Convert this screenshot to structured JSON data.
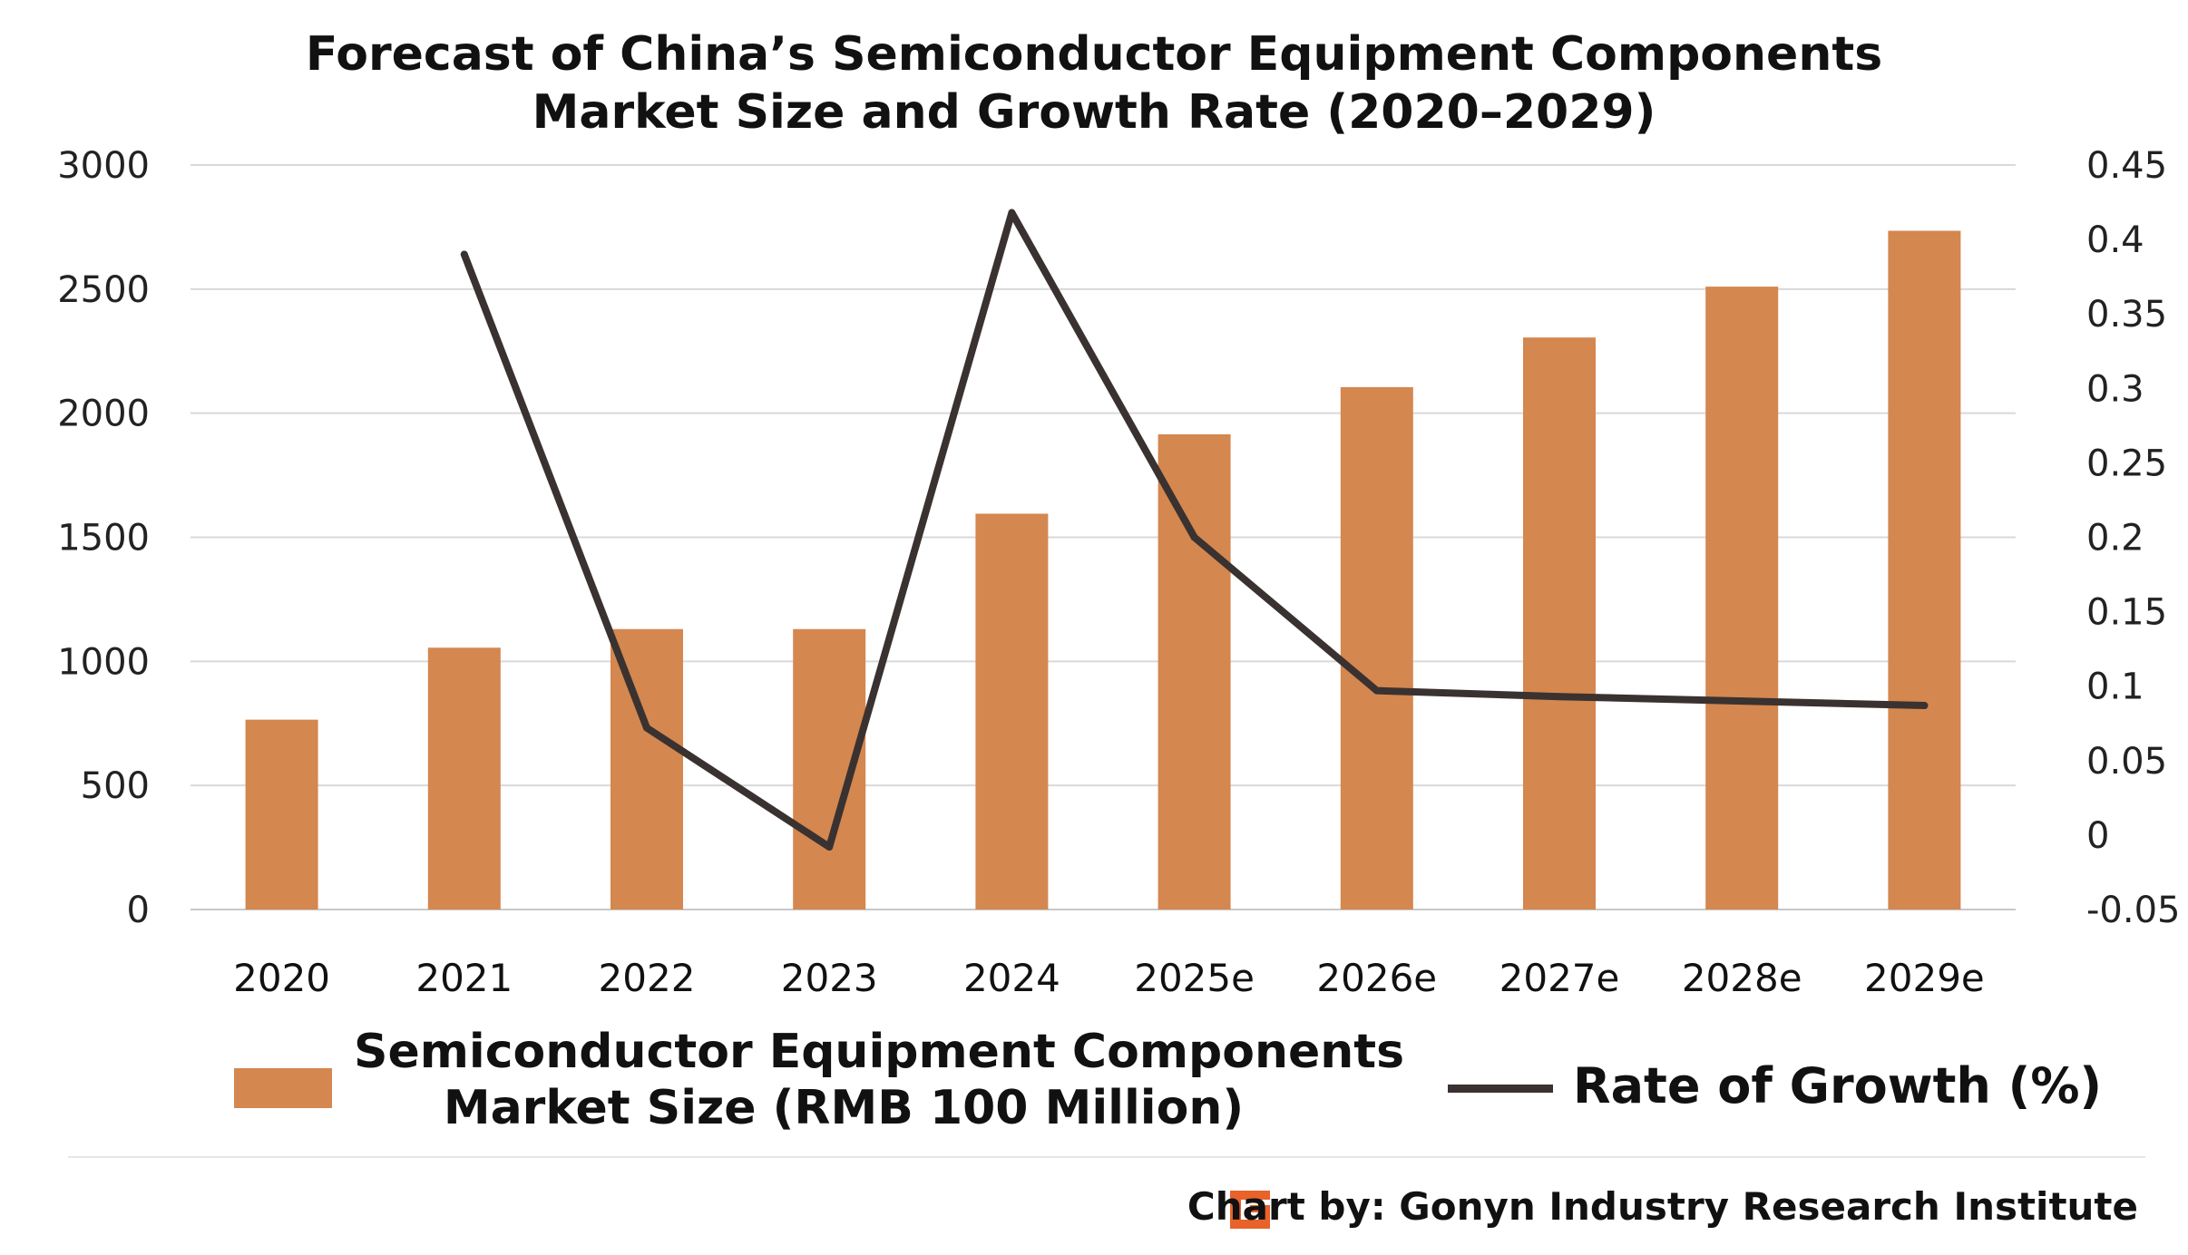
{
  "chart_data": {
    "type": "bar+line",
    "title": [
      "Forecast of China’s Semiconductor Equipment Components",
      "Market Size and Growth Rate (2020–2029)"
    ],
    "categories": [
      "2020",
      "2021",
      "2022",
      "2023",
      "2024",
      "2025e",
      "2026e",
      "2027e",
      "2028e",
      "2029e"
    ],
    "series": [
      {
        "name": "Semiconductor Equipment Components Market Size (RMB 100 Million)",
        "legend_lines": [
          "Semiconductor Equipment Components",
          "Market Size (RMB 100 Million)"
        ],
        "type": "bar",
        "axis": "left",
        "color": "#D4874F",
        "values": [
          765,
          1055,
          1130,
          1130,
          1595,
          1915,
          2105,
          2305,
          2510,
          2735
        ]
      },
      {
        "name": "Rate of Growth (%)",
        "type": "line",
        "axis": "right",
        "color": "#3A3230",
        "values": [
          null,
          0.39,
          0.072,
          -0.008,
          0.418,
          0.2,
          0.097,
          0.093,
          0.09,
          0.087
        ]
      }
    ],
    "y_left": {
      "min": 0,
      "max": 3000,
      "ticks": [
        "0",
        "500",
        "1000",
        "1500",
        "2000",
        "2500",
        "3000"
      ]
    },
    "y_right": {
      "min": -0.05,
      "max": 0.45,
      "ticks": [
        "-0.05",
        "0",
        "0.05",
        "0.1",
        "0.15",
        "0.2",
        "0.25",
        "0.3",
        "0.35",
        "0.4",
        "0.45"
      ]
    },
    "grid": true,
    "legend_position": "bottom"
  },
  "footer": {
    "credit": "Chart by: Gonyn Industry Research Institute",
    "logo_color": "#E8622A"
  }
}
